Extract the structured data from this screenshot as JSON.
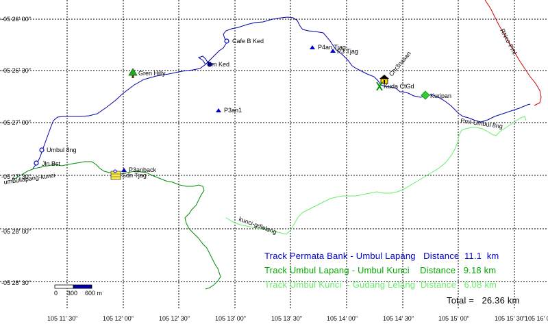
{
  "colors": {
    "track_blue": "#0000a8",
    "track_green": "#008800",
    "track_lightgreen": "#66ee66",
    "track_red": "#cc0000",
    "grid": "#000000",
    "waypoint_blue": "#0000cc",
    "tree_green": "#22aa22",
    "diamond_green": "#33cc33"
  },
  "lat_labels": [
    "-05 26' 00\"",
    "-05 26' 30\"",
    "-05 27' 00\"",
    "-05 27' 30\"",
    "-05 28' 00\"",
    "-05 28' 30\""
  ],
  "lon_labels": [
    "105 11' 30\"",
    "105 12' 00\"",
    "105 12' 30\"",
    "105 13' 00\"",
    "105 13' 30\"",
    "105 14' 00\"",
    "105 14' 30\"",
    "105 15' 00\"",
    "105 15' 30\"",
    "105 16' 0"
  ],
  "waypoints": {
    "cafe_b_ked": "Cafe B Ked",
    "bm_ked": "Bm Ked",
    "gren_hilly": "Gren Hilly",
    "p4an_tjag": "P4an Tjag",
    "p3_tjag": "P3 Tjag",
    "chr_3nasan": "Chr3nasan",
    "kuda_ctgd": "Kuda CtGd",
    "kuripan": "Kuripan",
    "p3an1": "P3an1",
    "umbul_8ng": "Umbul 8ng",
    "jln_bst": "Jln Bst",
    "p3anback": "P3anback",
    "sdn_tjag": "Sdn Tjag"
  },
  "track_labels": {
    "rnco_pml": "RNco-Pml",
    "pml_umbul_8ng": "Pml-Umbul 8ng",
    "umbullapang_kunci": "umbullapang-kunci",
    "kunci_gdlelang": "kunci-gdlelang"
  },
  "legend": {
    "line1": "Track Permata Bank - Umbul Lapang   Distance  11.1  km",
    "line2": "Track Umbul Lapang - Umbul Kunci    Distance   9.18 km",
    "line3": "Track Umbul Kunci  - Gudang Lelang  Distance   6.08 km",
    "total": "Total =   26.36 km"
  },
  "scale_bar": {
    "label_start": "0",
    "label_mid": "300",
    "label_end": "600 m"
  }
}
